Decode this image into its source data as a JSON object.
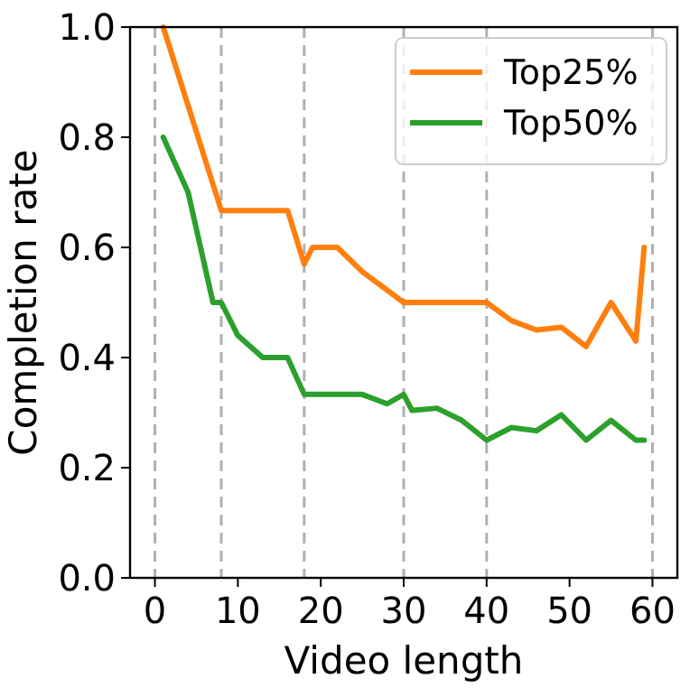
{
  "chart_data": {
    "type": "line",
    "xlabel": "Video length",
    "ylabel": "Completion rate",
    "xlim": [
      -3,
      63
    ],
    "ylim": [
      0,
      1
    ],
    "xticks": [
      0,
      10,
      20,
      30,
      40,
      50,
      60
    ],
    "yticks": [
      {
        "value": 0,
        "label": "0.0"
      },
      0.2,
      0.4,
      0.6,
      0.8,
      {
        "value": 1,
        "label": "1.0"
      }
    ],
    "legend": "top right",
    "grid": false,
    "marker": "none",
    "line_style": "solid",
    "ref_lines": [
      {
        "axis": "x",
        "value": 0,
        "color": "#b0b0b0",
        "line_style": "dashed"
      },
      {
        "axis": "x",
        "value": 8,
        "color": "#b0b0b0",
        "line_style": "dashed"
      },
      {
        "axis": "x",
        "value": 18,
        "color": "#b0b0b0",
        "line_style": "dashed"
      },
      {
        "axis": "x",
        "value": 30,
        "color": "#b0b0b0",
        "line_style": "dashed"
      },
      {
        "axis": "x",
        "value": 40,
        "color": "#b0b0b0",
        "line_style": "dashed"
      },
      {
        "axis": "x",
        "value": 60,
        "color": "#b0b0b0",
        "line_style": "dashed"
      }
    ],
    "series": [
      {
        "name": "Top25%",
        "color": "#ff7f0e",
        "x": [
          1,
          8,
          16,
          18,
          19,
          22,
          25,
          30,
          40,
          43,
          46,
          49,
          52,
          55,
          58,
          59
        ],
        "values": [
          1.0,
          0.667,
          0.667,
          0.57,
          0.6,
          0.6,
          0.556,
          0.5,
          0.5,
          0.467,
          0.45,
          0.455,
          0.42,
          0.5,
          0.43,
          0.6
        ]
      },
      {
        "name": "Top50%",
        "color": "#2ca02c",
        "x": [
          1,
          4,
          7,
          8,
          10,
          13,
          16,
          18,
          25,
          28,
          30,
          31,
          34,
          37,
          40,
          43,
          46,
          49,
          52,
          55,
          58,
          59
        ],
        "values": [
          0.8,
          0.7,
          0.5,
          0.5,
          0.44,
          0.4,
          0.4,
          0.333,
          0.333,
          0.316,
          0.333,
          0.304,
          0.308,
          0.286,
          0.25,
          0.273,
          0.267,
          0.296,
          0.25,
          0.286,
          0.25,
          0.25
        ]
      }
    ]
  }
}
